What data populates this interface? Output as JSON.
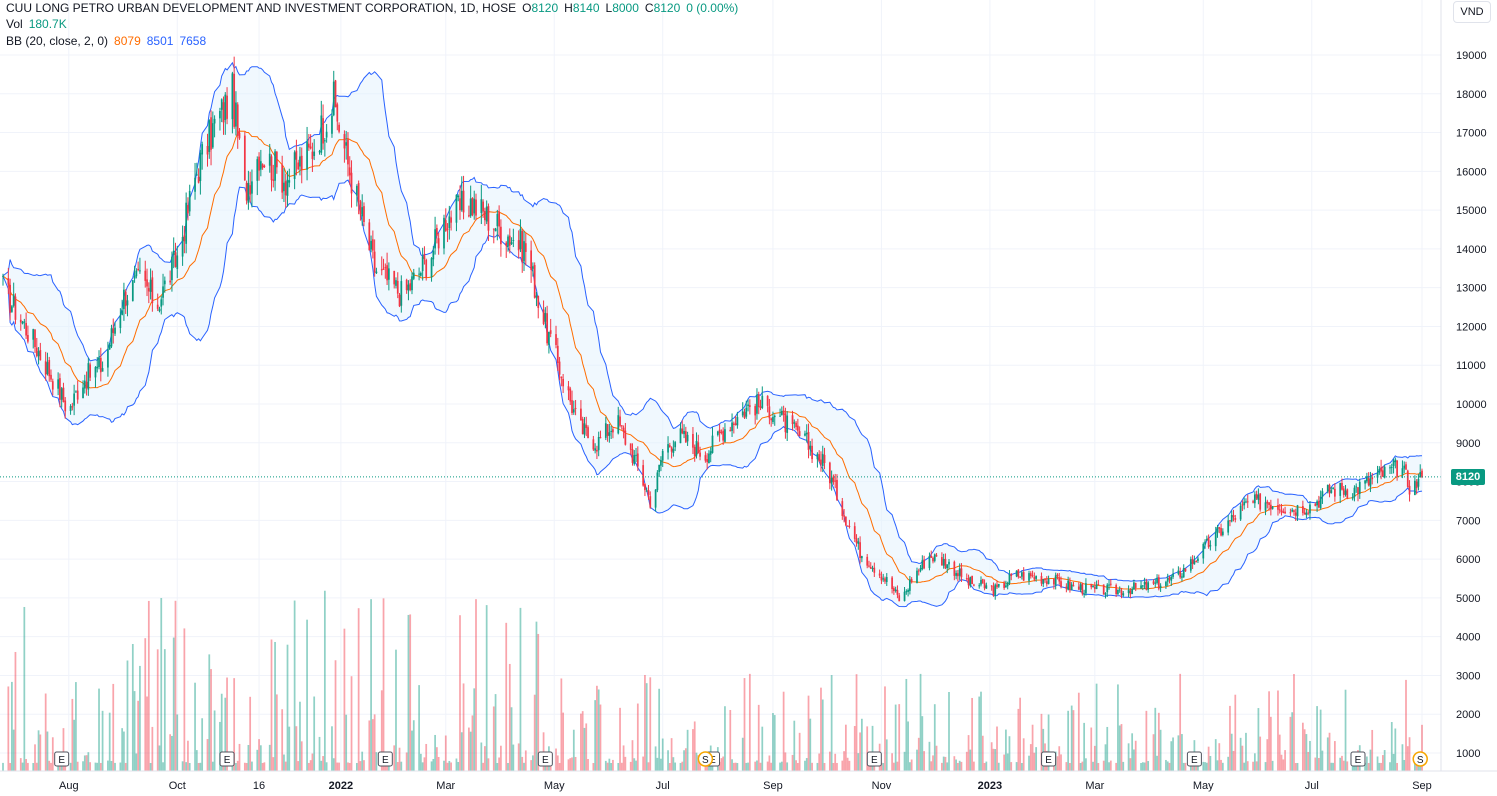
{
  "header": {
    "symbol_title": "CUU LONG PETRO URBAN DEVELOPMENT AND INVESTMENT CORPORATION, 1D, HOSE",
    "open_label": "O",
    "open": "8120",
    "high_label": "H",
    "high": "8140",
    "low_label": "L",
    "low": "8000",
    "close_label": "C",
    "close": "8120",
    "change": "0 (0.00%)",
    "vol_label": "Vol",
    "vol_value": "180.7K",
    "bb_label": "BB (20, close, 2, 0)",
    "bb_basis": "8079",
    "bb_upper": "8501",
    "bb_lower": "7658"
  },
  "currency": "VND",
  "last_price_label": "8120",
  "colors": {
    "up": "#089981",
    "down": "#f23645",
    "basis": "#ff6d00",
    "band": "#2962ff",
    "band_fill": "#e3f2fd"
  },
  "events": {
    "earnings_label": "E",
    "split_label": "S",
    "earnings_dates": [
      "2021-07-28",
      "2021-10-29",
      "2022-01-26",
      "2022-04-26",
      "2022-07-29",
      "2022-10-28",
      "2023-02-03",
      "2023-04-26",
      "2023-07-27"
    ],
    "split_dates": [
      "2022-07-25",
      "2023-08-31"
    ]
  },
  "chart_data": {
    "type": "candlestick",
    "x_unit": "date",
    "y_unit": "VND",
    "yticks": [
      "1000",
      "2000",
      "3000",
      "4000",
      "5000",
      "6000",
      "7000",
      "8000",
      "9000",
      "10000",
      "11000",
      "12000",
      "13000",
      "14000",
      "15000",
      "16000",
      "17000",
      "18000",
      "19000"
    ],
    "xticks": [
      {
        "label": "Aug",
        "date": "2021-08-01"
      },
      {
        "label": "Oct",
        "date": "2021-10-01"
      },
      {
        "label": "16",
        "date": "2021-11-16"
      },
      {
        "label": "2022",
        "date": "2022-01-01"
      },
      {
        "label": "Mar",
        "date": "2022-03-01"
      },
      {
        "label": "May",
        "date": "2022-05-01"
      },
      {
        "label": "Jul",
        "date": "2022-07-01"
      },
      {
        "label": "Sep",
        "date": "2022-09-01"
      },
      {
        "label": "Nov",
        "date": "2022-11-01"
      },
      {
        "label": "2023",
        "date": "2023-01-01"
      },
      {
        "label": "Mar",
        "date": "2023-03-01"
      },
      {
        "label": "May",
        "date": "2023-05-01"
      },
      {
        "label": "Jul",
        "date": "2023-07-01"
      },
      {
        "label": "Sep",
        "date": "2023-09-01"
      }
    ],
    "range": {
      "start": "2021-06-25",
      "end": "2023-09-01"
    },
    "price_path": [
      [
        "2021-06-25",
        13000
      ],
      [
        "2021-07-10",
        11800
      ],
      [
        "2021-07-25",
        10500
      ],
      [
        "2021-08-01",
        9800
      ],
      [
        "2021-08-08",
        10600
      ],
      [
        "2021-08-20",
        11000
      ],
      [
        "2021-09-01",
        12800
      ],
      [
        "2021-09-10",
        13200
      ],
      [
        "2021-09-20",
        12600
      ],
      [
        "2021-10-01",
        13800
      ],
      [
        "2021-10-12",
        16000
      ],
      [
        "2021-10-22",
        17200
      ],
      [
        "2021-11-01",
        18000
      ],
      [
        "2021-11-08",
        15500
      ],
      [
        "2021-11-16",
        16500
      ],
      [
        "2021-12-01",
        15800
      ],
      [
        "2021-12-15",
        16500
      ],
      [
        "2021-12-28",
        17800
      ],
      [
        "2022-01-05",
        16200
      ],
      [
        "2022-01-20",
        13500
      ],
      [
        "2022-02-05",
        12800
      ],
      [
        "2022-02-20",
        13800
      ],
      [
        "2022-03-01",
        14800
      ],
      [
        "2022-03-15",
        15200
      ],
      [
        "2022-03-30",
        14600
      ],
      [
        "2022-04-15",
        14000
      ],
      [
        "2022-04-26",
        12000
      ],
      [
        "2022-05-05",
        10800
      ],
      [
        "2022-05-15",
        9400
      ],
      [
        "2022-05-25",
        9000
      ],
      [
        "2022-06-05",
        9600
      ],
      [
        "2022-06-15",
        8600
      ],
      [
        "2022-06-25",
        7400
      ],
      [
        "2022-07-01",
        8800
      ],
      [
        "2022-07-10",
        9200
      ],
      [
        "2022-07-25",
        8700
      ],
      [
        "2022-08-05",
        9400
      ],
      [
        "2022-08-20",
        10000
      ],
      [
        "2022-08-30",
        9900
      ],
      [
        "2022-09-10",
        9400
      ],
      [
        "2022-09-20",
        9000
      ],
      [
        "2022-10-01",
        8400
      ],
      [
        "2022-10-10",
        7300
      ],
      [
        "2022-10-20",
        6200
      ],
      [
        "2022-10-28",
        5800
      ],
      [
        "2022-11-05",
        5400
      ],
      [
        "2022-11-12",
        4900
      ],
      [
        "2022-11-18",
        5500
      ],
      [
        "2022-11-28",
        6100
      ],
      [
        "2022-12-08",
        5900
      ],
      [
        "2022-12-20",
        5400
      ],
      [
        "2023-01-05",
        5200
      ],
      [
        "2023-01-15",
        5600
      ],
      [
        "2023-02-03",
        5500
      ],
      [
        "2023-02-15",
        5300
      ],
      [
        "2023-03-01",
        5200
      ],
      [
        "2023-03-15",
        5200
      ],
      [
        "2023-04-01",
        5300
      ],
      [
        "2023-04-15",
        5500
      ],
      [
        "2023-04-26",
        6000
      ],
      [
        "2023-05-10",
        6700
      ],
      [
        "2023-05-25",
        7400
      ],
      [
        "2023-06-05",
        7500
      ],
      [
        "2023-06-20",
        7300
      ],
      [
        "2023-07-01",
        7400
      ],
      [
        "2023-07-12",
        7800
      ],
      [
        "2023-07-25",
        7800
      ],
      [
        "2023-08-10",
        8200
      ],
      [
        "2023-08-20",
        8400
      ],
      [
        "2023-08-26",
        7800
      ],
      [
        "2023-09-01",
        8120
      ]
    ],
    "last": {
      "open": 8120,
      "high": 8140,
      "low": 8000,
      "close": 8120,
      "volume": "180.7K"
    },
    "indicator": {
      "name": "BB",
      "period": 20,
      "source": "close",
      "mult": 2,
      "offset": 0,
      "basis": 8079,
      "upper": 8501,
      "lower": 7658
    }
  }
}
